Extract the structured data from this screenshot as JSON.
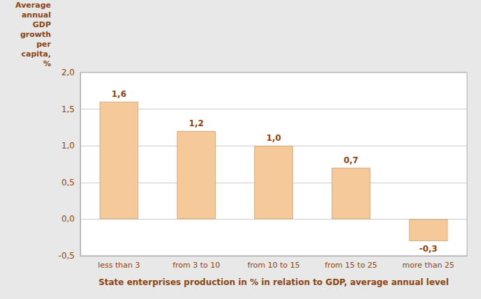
{
  "chart_data": {
    "type": "bar",
    "categories": [
      "less than 3",
      "from 3 to 10",
      "from 10 to 15",
      "from 15 to 25",
      "more than 25"
    ],
    "values": [
      1.6,
      1.2,
      1.0,
      0.7,
      -0.3
    ],
    "value_labels": [
      "1,6",
      "1,2",
      "1,0",
      "0,7",
      "-0,3"
    ],
    "data_labels": true,
    "color": "#F5C99A",
    "ylim": [
      -0.5,
      2.0
    ],
    "yticks": [
      {
        "value": -0.5,
        "label": "-0,5"
      },
      {
        "value": 0.0,
        "label": "0,0"
      },
      {
        "value": 0.5,
        "label": "0,5"
      },
      {
        "value": 1.0,
        "label": "1,0"
      },
      {
        "value": 1.5,
        "label": "1,5"
      },
      {
        "value": 2.0,
        "label": "2,0"
      }
    ],
    "ylabel": "Average\nannual\nGDP\ngrowth\nper\ncapita,\n%",
    "xlabel": "State enterprises production in % in relation to GDP, average annual level",
    "grid": true
  }
}
